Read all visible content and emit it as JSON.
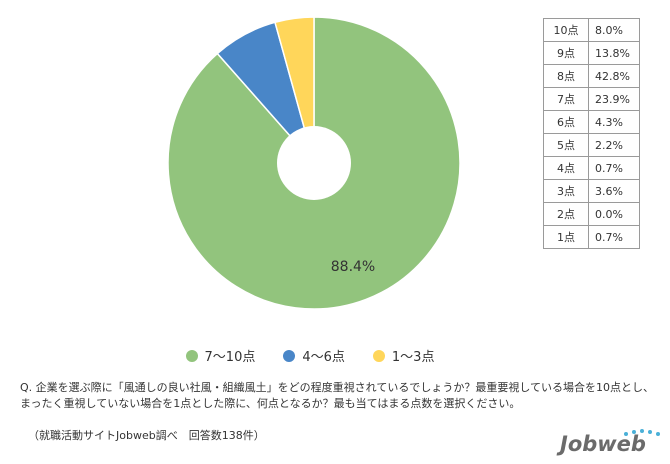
{
  "chart_data": {
    "type": "pie",
    "donut": true,
    "slices": [
      {
        "label": "7～10点",
        "value": 88.4,
        "color": "#92C47D"
      },
      {
        "label": "4～6点",
        "value": 7.2,
        "color": "#4986C8"
      },
      {
        "label": "1～3点",
        "value": 4.3,
        "color": "#FFD65A"
      }
    ],
    "data_label": "88.4%",
    "legend_position": "bottom"
  },
  "score_table": [
    {
      "label": "10点",
      "value": "8.0%"
    },
    {
      "label": "9点",
      "value": "13.8%"
    },
    {
      "label": "8点",
      "value": "42.8%"
    },
    {
      "label": "7点",
      "value": "23.9%"
    },
    {
      "label": "6点",
      "value": "4.3%"
    },
    {
      "label": "5点",
      "value": "2.2%"
    },
    {
      "label": "4点",
      "value": "0.7%"
    },
    {
      "label": "3点",
      "value": "3.6%"
    },
    {
      "label": "2点",
      "value": "0.0%"
    },
    {
      "label": "1点",
      "value": "0.7%"
    }
  ],
  "question": "Q. 企業を選ぶ際に「風通しの良い社風・組織風土」をどの程度重視されているでしょうか？最重要視している場合を10点とし、まったく重視していない場合を1点とした際に、何点となるか？最も当てはまる点数を選択ください。",
  "note": "（就職活動サイトJobweb調べ　回答数138件）",
  "logo_text": "Jobweb"
}
